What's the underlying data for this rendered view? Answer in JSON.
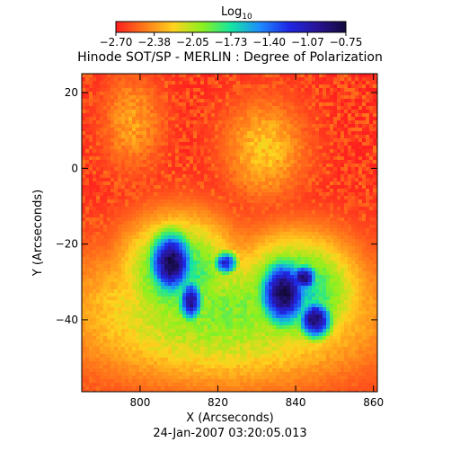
{
  "chart_data": {
    "type": "heatmap",
    "title": "Hinode SOT/SP - MERLIN : Degree of Polarization",
    "timestamp": "24-Jan-2007 03:20:05.013",
    "xlabel": "X (Arcseconds)",
    "ylabel": "Y (Arcseconds)",
    "xlim": [
      785,
      861
    ],
    "ylim": [
      -59,
      25
    ],
    "xticks": [
      800,
      820,
      840,
      860
    ],
    "yticks": [
      20,
      0,
      -20,
      -40
    ],
    "colorbar": {
      "label_base": "Log",
      "label_sub": "10",
      "ticks": [
        "-2.70",
        "-2.38",
        "-2.05",
        "-1.73",
        "-1.40",
        "-1.07",
        "-0.75"
      ],
      "range": [
        -2.7,
        -0.75
      ],
      "stops": [
        "#ff1e1e",
        "#ff7a1a",
        "#ffd21e",
        "#8cf01e",
        "#14e6a0",
        "#1e8cff",
        "#1e28e6",
        "#281496",
        "#140a3c"
      ]
    },
    "features": [
      {
        "label": "umbra-west",
        "x": 808,
        "y": -25,
        "sx": 4.5,
        "sy": 6.5,
        "peak": -0.78
      },
      {
        "label": "umbra-mid-a",
        "x": 813,
        "y": -35,
        "sx": 2.5,
        "sy": 4.5,
        "peak": -0.95
      },
      {
        "label": "umbra-mid-b",
        "x": 822,
        "y": -25,
        "sx": 2.5,
        "sy": 2.5,
        "peak": -1.15
      },
      {
        "label": "umbra-east-a",
        "x": 837,
        "y": -33,
        "sx": 5.0,
        "sy": 7.0,
        "peak": -0.78
      },
      {
        "label": "umbra-east-b",
        "x": 845,
        "y": -40,
        "sx": 3.5,
        "sy": 4.0,
        "peak": -0.85
      },
      {
        "label": "umbra-east-c",
        "x": 842,
        "y": -29,
        "sx": 3.0,
        "sy": 3.0,
        "peak": -0.9
      },
      {
        "label": "penumbra-west",
        "x": 810,
        "y": -28,
        "sx": 11,
        "sy": 11,
        "peak": -1.7
      },
      {
        "label": "penumbra-east",
        "x": 840,
        "y": -33,
        "sx": 12,
        "sy": 11,
        "peak": -1.65
      },
      {
        "label": "plage-band",
        "x": 822,
        "y": -38,
        "sx": 30,
        "sy": 14,
        "peak": -1.95
      },
      {
        "label": "network-north",
        "x": 832,
        "y": 5,
        "sx": 8,
        "sy": 10,
        "peak": -2.25
      },
      {
        "label": "network-nw",
        "x": 798,
        "y": 12,
        "sx": 6,
        "sy": 10,
        "peak": -2.35
      }
    ]
  }
}
